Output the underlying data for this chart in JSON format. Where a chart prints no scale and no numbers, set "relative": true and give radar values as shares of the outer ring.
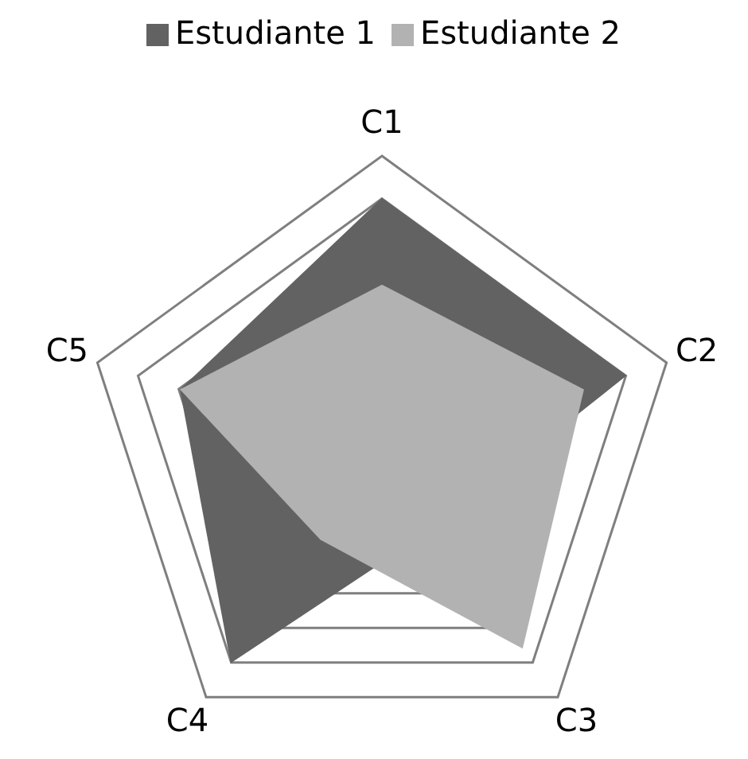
{
  "chart_data": {
    "type": "radar",
    "relative": true,
    "categories": [
      "C1",
      "C2",
      "C3",
      "C4",
      "C5"
    ],
    "grid": true,
    "legend": "top",
    "series": [
      {
        "name": "Estudiante 1",
        "color": "#626262",
        "values": [
          0.86,
          0.86,
          0.3,
          0.86,
          0.71
        ]
      },
      {
        "name": "Estudiante 2",
        "color": "#b2b2b2",
        "values": [
          0.57,
          0.71,
          0.8,
          0.35,
          0.71
        ]
      }
    ]
  }
}
